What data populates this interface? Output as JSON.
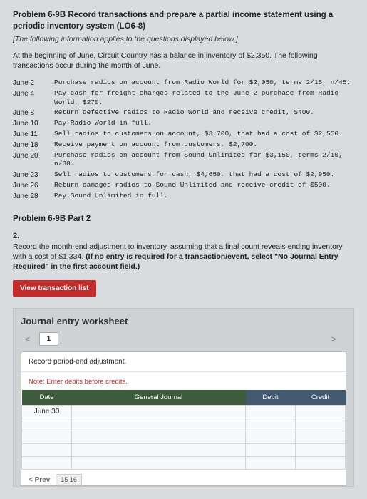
{
  "problem": {
    "title": "Problem 6-9B Record transactions and prepare a partial income statement using a periodic inventory system (LO6-8)",
    "subtitle": "[The following information applies to the questions displayed below.]",
    "intro": "At the beginning of June, Circuit Country has a balance in inventory of $2,350. The following transactions occur during the month of June.",
    "transactions": [
      {
        "date": "June 2",
        "desc": "Purchase radios on account from Radio World for $2,050, terms 2/15, n/45."
      },
      {
        "date": "June 4",
        "desc": "Pay cash for freight charges related to the June 2 purchase from Radio World, $270."
      },
      {
        "date": "June 8",
        "desc": "Return defective radios to Radio World and receive credit, $400."
      },
      {
        "date": "June 10",
        "desc": "Pay Radio World in full."
      },
      {
        "date": "June 11",
        "desc": "Sell radios to customers on account, $3,700, that had a cost of $2,550."
      },
      {
        "date": "June 18",
        "desc": "Receive payment on account from customers, $2,700."
      },
      {
        "date": "June 20",
        "desc": "Purchase radios on account from Sound Unlimited for $3,150, terms 2/10, n/30."
      },
      {
        "date": "June 23",
        "desc": "Sell radios to customers for cash, $4,650, that had a cost of $2,950."
      },
      {
        "date": "June 26",
        "desc": "Return damaged radios to Sound Unlimited and receive credit of $500."
      },
      {
        "date": "June 28",
        "desc": "Pay Sound Unlimited in full."
      }
    ]
  },
  "part": {
    "heading": "Problem 6-9B Part 2",
    "num": "2.",
    "text_a": "Record the month-end adjustment to inventory, assuming that a final count reveals ending inventory with a cost of $1,334. ",
    "text_b": "(If no entry is required for a transaction/event, select \"No Journal Entry Required\" in the first account field.)"
  },
  "buttons": {
    "view_list": "View transaction list"
  },
  "worksheet": {
    "title": "Journal entry worksheet",
    "tab": "1",
    "subhead": "Record period-end adjustment.",
    "note": "Note: Enter debits before credits.",
    "headers": {
      "date": "Date",
      "gj": "General Journal",
      "debit": "Debit",
      "credit": "Credit"
    },
    "rows": [
      {
        "date": "June 30",
        "gj": "",
        "debit": "",
        "credit": ""
      },
      {
        "date": "",
        "gj": "",
        "debit": "",
        "credit": ""
      },
      {
        "date": "",
        "gj": "",
        "debit": "",
        "credit": ""
      },
      {
        "date": "",
        "gj": "",
        "debit": "",
        "credit": ""
      },
      {
        "date": "",
        "gj": "",
        "debit": "",
        "credit": ""
      }
    ],
    "pager": {
      "prev": "< Prev",
      "nums": "15 16"
    }
  }
}
